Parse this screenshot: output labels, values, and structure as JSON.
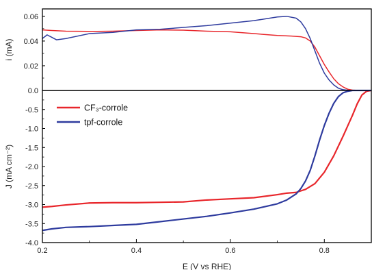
{
  "chart_data": [
    {
      "type": "line",
      "panel": "top",
      "ylabel": "i (mA)",
      "xlabel": "",
      "xlim": [
        0.2,
        0.9
      ],
      "ylim": [
        0.0,
        0.066
      ],
      "y_ticks": [
        "0.0",
        "0.02",
        "0.04",
        "0.06"
      ],
      "y_tick_values": [
        0.0,
        0.02,
        0.04,
        0.06
      ],
      "series": [
        {
          "color": "#e8262b",
          "x": [
            0.2,
            0.22,
            0.25,
            0.3,
            0.35,
            0.4,
            0.45,
            0.5,
            0.55,
            0.6,
            0.65,
            0.7,
            0.73,
            0.75,
            0.76,
            0.77,
            0.78,
            0.79,
            0.8,
            0.81,
            0.82,
            0.83,
            0.84,
            0.85,
            0.86,
            0.87,
            0.88,
            0.9
          ],
          "y": [
            0.049,
            0.0485,
            0.048,
            0.0478,
            0.048,
            0.0485,
            0.049,
            0.0488,
            0.048,
            0.0475,
            0.046,
            0.0445,
            0.044,
            0.0435,
            0.0425,
            0.04,
            0.035,
            0.028,
            0.021,
            0.015,
            0.0095,
            0.0055,
            0.0028,
            0.001,
            0.0003,
            0.0001,
            0.0,
            0.0
          ]
        },
        {
          "color": "#2e3b9e",
          "x": [
            0.2,
            0.21,
            0.22,
            0.23,
            0.25,
            0.3,
            0.35,
            0.4,
            0.45,
            0.5,
            0.55,
            0.6,
            0.65,
            0.7,
            0.72,
            0.74,
            0.75,
            0.76,
            0.77,
            0.78,
            0.79,
            0.8,
            0.81,
            0.82,
            0.83,
            0.84,
            0.85,
            0.86,
            0.9
          ],
          "y": [
            0.042,
            0.045,
            0.043,
            0.041,
            0.042,
            0.046,
            0.047,
            0.049,
            0.0495,
            0.051,
            0.0525,
            0.0545,
            0.0565,
            0.0595,
            0.06,
            0.0585,
            0.0555,
            0.05,
            0.042,
            0.032,
            0.022,
            0.014,
            0.0085,
            0.0045,
            0.0018,
            0.0006,
            0.0002,
            0.0,
            0.0
          ]
        }
      ]
    },
    {
      "type": "line",
      "panel": "bottom",
      "xlabel": "E (V vs RHE)",
      "ylabel": "J (mA cm⁻²)",
      "xlim": [
        0.2,
        0.9
      ],
      "ylim": [
        -4.0,
        0.0
      ],
      "x_ticks": [
        "0.2",
        "0.4",
        "0.6",
        "0.8"
      ],
      "x_tick_values": [
        0.2,
        0.4,
        0.6,
        0.8
      ],
      "y_ticks": [
        "-0.5",
        "-1.0",
        "-1.5",
        "-2.0",
        "-2.5",
        "-3.0",
        "-3.5",
        "-4.0"
      ],
      "y_tick_values": [
        -0.5,
        -1.0,
        -1.5,
        -2.0,
        -2.5,
        -3.0,
        -3.5,
        -4.0
      ],
      "legend_position": "top-left",
      "series": [
        {
          "name": "CF₃-corrole",
          "color": "#e8262b",
          "x": [
            0.2,
            0.22,
            0.25,
            0.3,
            0.35,
            0.4,
            0.45,
            0.5,
            0.55,
            0.6,
            0.65,
            0.7,
            0.72,
            0.74,
            0.76,
            0.78,
            0.8,
            0.82,
            0.84,
            0.86,
            0.87,
            0.88,
            0.89,
            0.9
          ],
          "y": [
            -3.07,
            -3.05,
            -3.01,
            -2.96,
            -2.95,
            -2.95,
            -2.94,
            -2.93,
            -2.88,
            -2.85,
            -2.82,
            -2.74,
            -2.7,
            -2.68,
            -2.6,
            -2.45,
            -2.15,
            -1.72,
            -1.2,
            -0.65,
            -0.35,
            -0.12,
            -0.02,
            0.0
          ]
        },
        {
          "name": "tpf-corrole",
          "color": "#2e3b9e",
          "x": [
            0.2,
            0.21,
            0.22,
            0.25,
            0.3,
            0.35,
            0.4,
            0.45,
            0.5,
            0.55,
            0.6,
            0.65,
            0.7,
            0.72,
            0.74,
            0.75,
            0.76,
            0.77,
            0.78,
            0.79,
            0.8,
            0.81,
            0.82,
            0.83,
            0.84,
            0.85,
            0.86,
            0.9
          ],
          "y": [
            -3.68,
            -3.66,
            -3.64,
            -3.6,
            -3.58,
            -3.55,
            -3.52,
            -3.45,
            -3.38,
            -3.31,
            -3.22,
            -3.12,
            -2.98,
            -2.88,
            -2.72,
            -2.58,
            -2.38,
            -2.1,
            -1.72,
            -1.3,
            -0.92,
            -0.6,
            -0.34,
            -0.16,
            -0.06,
            -0.02,
            0.0,
            0.0
          ]
        }
      ]
    }
  ]
}
